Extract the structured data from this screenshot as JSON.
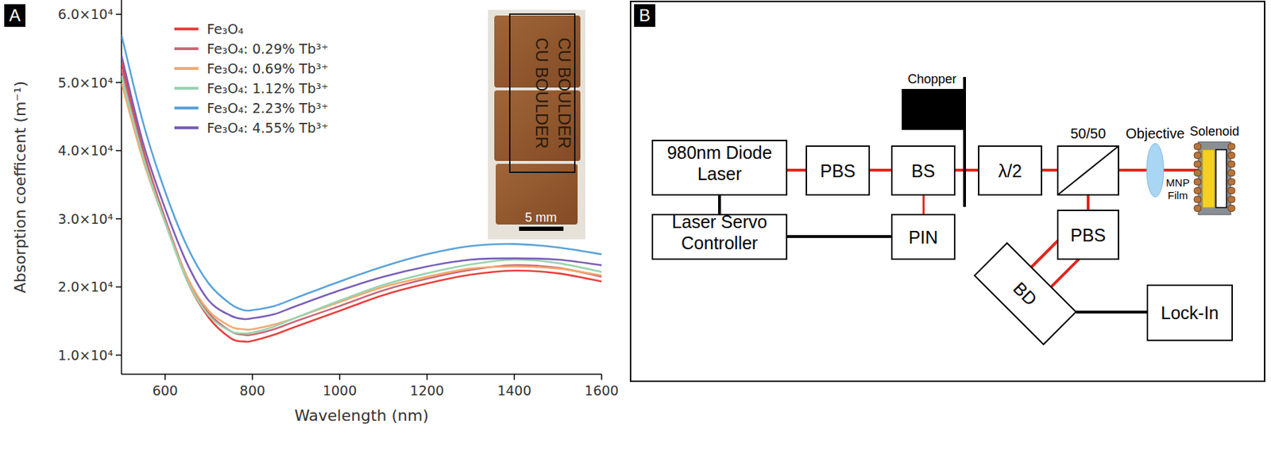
{
  "chart_data": {
    "type": "line",
    "panel_label": "A",
    "x_label": "Wavelength (nm)",
    "y_label": "Absorption coefficent (m⁻¹)",
    "x": [
      500,
      550,
      600,
      650,
      700,
      750,
      780,
      800,
      850,
      900,
      1000,
      1100,
      1200,
      1300,
      1400,
      1500,
      1600
    ],
    "series": [
      {
        "name": "Fe₃O₄",
        "color": "#e8413c",
        "values": [
          53000,
          40000,
          30000,
          21000,
          15500,
          12500,
          12000,
          12100,
          13000,
          14200,
          16500,
          18800,
          20500,
          21800,
          22400,
          22000,
          20800
        ]
      },
      {
        "name": "Fe₃O₄: 0.29% Tb³⁺",
        "color": "#c96a7a",
        "values": [
          52000,
          39500,
          30000,
          21500,
          16200,
          13500,
          13000,
          13000,
          13800,
          15000,
          17200,
          19500,
          21200,
          22500,
          23200,
          22800,
          21500
        ]
      },
      {
        "name": "Fe₃O₄: 0.69% Tb³⁺",
        "color": "#f4a86c",
        "values": [
          50000,
          38500,
          29500,
          21500,
          16500,
          14200,
          13800,
          13800,
          14500,
          15500,
          17800,
          20000,
          21500,
          22700,
          23000,
          22700,
          21700
        ]
      },
      {
        "name": "Fe₃O₄: 1.12% Tb³⁺",
        "color": "#98d4b0",
        "values": [
          51000,
          39000,
          29500,
          21000,
          15800,
          13500,
          13200,
          13300,
          14200,
          15500,
          18000,
          20300,
          22000,
          23300,
          24000,
          23500,
          22200
        ]
      },
      {
        "name": "Fe₃O₄: 2.23% Tb³⁺",
        "color": "#5ba3d9",
        "values": [
          57000,
          44000,
          34000,
          26000,
          20500,
          17500,
          16600,
          16600,
          17200,
          18400,
          20800,
          23000,
          24800,
          26000,
          26300,
          25800,
          24800
        ]
      },
      {
        "name": "Fe₃O₄: 4.55% Tb³⁺",
        "color": "#7a5fb8",
        "values": [
          54000,
          41000,
          31500,
          23500,
          18000,
          15800,
          15300,
          15400,
          16000,
          17200,
          19500,
          21500,
          23000,
          24000,
          24200,
          24000,
          23200
        ]
      }
    ],
    "xlim": [
      500,
      1600
    ],
    "xticks": [
      600,
      800,
      1000,
      1200,
      1400,
      1600
    ],
    "ylim": [
      7200,
      62100
    ],
    "yticks": [
      {
        "value": 10000,
        "label": "1.0×10⁴"
      },
      {
        "value": 20000,
        "label": "2.0×10⁴"
      },
      {
        "value": 30000,
        "label": "3.0×10⁴"
      },
      {
        "value": 40000,
        "label": "4.0×10⁴"
      },
      {
        "value": 50000,
        "label": "5.0×10⁴"
      },
      {
        "value": 60000,
        "label": "6.0×10⁴"
      }
    ],
    "grid": false,
    "legend": "upper left",
    "inset": {
      "texts": [
        "CU BOULDER",
        "CU BOULDER"
      ],
      "scale_bar": "5 mm"
    }
  },
  "diagram": {
    "panel_label": "B",
    "nodes": [
      {
        "label": "980nm Diode Laser"
      },
      {
        "label": "PBS"
      },
      {
        "label": "BS"
      },
      {
        "label": "λ/2"
      },
      {
        "label": "Laser Servo Controller"
      },
      {
        "label": "PIN"
      },
      {
        "label": "PBS"
      },
      {
        "label": "BD"
      },
      {
        "label": "Lock-In"
      }
    ],
    "annotations": [
      "Chopper",
      "50/50",
      "Objective",
      "Solenoid",
      "MNP Film"
    ]
  }
}
